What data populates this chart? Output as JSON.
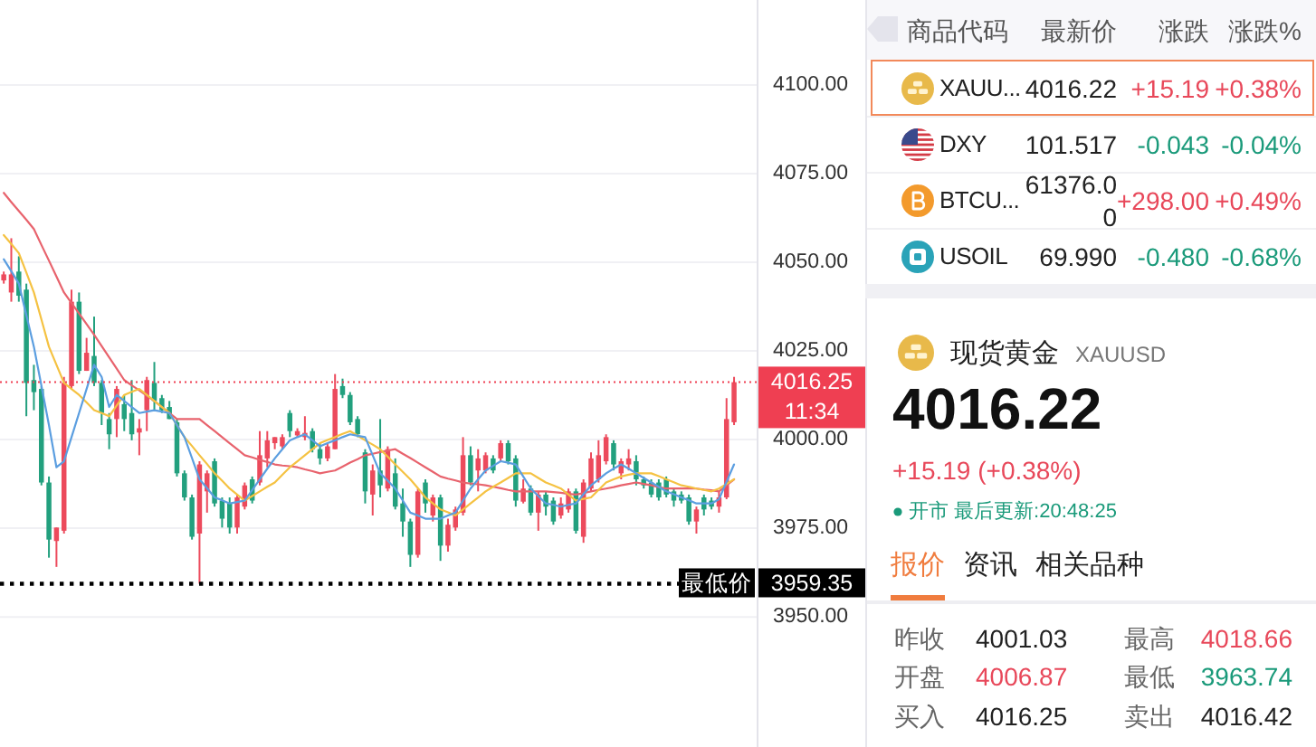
{
  "chart_data": [
    {
      "type": "candlestick",
      "categories": [
        null,
        null,
        null,
        null,
        null,
        null,
        null,
        null,
        null,
        null,
        null,
        null,
        null,
        null,
        null,
        null,
        null,
        null,
        null,
        null,
        null,
        null,
        null,
        null,
        null,
        null,
        null,
        null,
        null,
        null,
        null,
        null,
        null,
        null,
        null,
        null,
        null,
        null,
        null,
        null,
        null,
        null,
        null,
        null,
        null,
        null,
        null,
        null,
        null,
        null,
        null,
        null,
        null,
        null,
        null,
        null,
        null,
        null,
        null,
        null,
        null,
        null,
        null,
        null,
        null,
        null,
        null,
        null,
        null,
        null,
        null,
        null,
        null,
        null,
        null,
        null,
        null,
        null,
        null,
        null,
        null,
        null,
        null,
        null,
        null,
        null,
        null,
        null,
        null,
        null,
        null,
        null,
        null,
        null,
        null,
        null,
        null,
        null
      ],
      "ohlc": [
        [
          4044.9,
          4047.4,
          4044.0,
          4046.6
        ],
        [
          4041.5,
          4056.8,
          4038.9,
          4046.6
        ],
        [
          4047.4,
          4051.7,
          4038.9,
          4040.6
        ],
        [
          4042.3,
          4044.0,
          4006.6,
          4016.0
        ],
        [
          4016.8,
          4021.1,
          4008.3,
          4013.4
        ],
        [
          4014.3,
          4015.1,
          3987.1,
          3987.9
        ],
        [
          3987.9,
          3989.6,
          3966.7,
          3971.8
        ],
        [
          3971.4,
          3975.2,
          3964.1,
          3975.2
        ],
        [
          3974.3,
          4017.7,
          3973.5,
          4016.0
        ],
        [
          4015.1,
          4042.3,
          4014.3,
          4038.9
        ],
        [
          4038.9,
          4041.5,
          4018.5,
          4019.4
        ],
        [
          4019.4,
          4028.7,
          4019.4,
          4024.5
        ],
        [
          4023.6,
          4034.7,
          4015.1,
          4016.0
        ],
        [
          4016.0,
          4016.8,
          4004.1,
          4007.5
        ],
        [
          4005.8,
          4007.5,
          3997.3,
          4001.5
        ],
        [
          4005.8,
          4015.1,
          4000.7,
          4014.3
        ],
        [
          4010.0,
          4012.6,
          4002.4,
          4005.8
        ],
        [
          4007.5,
          4016.8,
          3999.8,
          4001.5
        ],
        [
          4002.0,
          4005.8,
          3995.6,
          4003.2
        ],
        [
          4008.3,
          4017.7,
          4002.4,
          4016.8
        ],
        [
          4016.0,
          4021.9,
          4008.3,
          4010.9
        ],
        [
          4011.7,
          4012.6,
          4007.5,
          4008.3
        ],
        [
          4009.2,
          4010.9,
          4005.8,
          4005.8
        ],
        [
          4004.9,
          4005.8,
          3989.6,
          3990.5
        ],
        [
          3990.5,
          3991.3,
          3982.8,
          3983.7
        ],
        [
          3983.7,
          3984.5,
          3971.8,
          3972.6
        ],
        [
          3973.5,
          3993.9,
          3959.35,
          3993.0
        ],
        [
          3985.4,
          3991.3,
          3979.4,
          3990.5
        ],
        [
          3993.9,
          3994.7,
          3981.1,
          3982.0
        ],
        [
          3982.8,
          3983.7,
          3975.2,
          3977.7
        ],
        [
          3982.0,
          3983.7,
          3973.5,
          3975.2
        ],
        [
          3975.2,
          3984.5,
          3973.5,
          3983.7
        ],
        [
          3981.1,
          3987.9,
          3980.3,
          3987.1
        ],
        [
          3988.8,
          3989.6,
          3982.0,
          3982.8
        ],
        [
          3987.9,
          4002.4,
          3987.1,
          3995.6
        ],
        [
          3994.7,
          4002.4,
          3992.2,
          3999.8
        ],
        [
          3999.0,
          4000.7,
          3997.3,
          4000.7
        ],
        [
          3998.1,
          4001.5,
          3997.3,
          4000.7
        ],
        [
          4007.5,
          4008.3,
          4000.7,
          4002.4
        ],
        [
          4001.2,
          4003.2,
          4000.7,
          4002.4
        ],
        [
          4000.7,
          4006.6,
          3999.8,
          4001.9
        ],
        [
          4002.4,
          4003.2,
          3996.4,
          3997.3
        ],
        [
          3997.3,
          3999.0,
          3993.0,
          3994.7
        ],
        [
          3994.7,
          3999.0,
          3993.9,
          3998.1
        ],
        [
          3997.3,
          4018.5,
          3997.3,
          4014.3
        ],
        [
          4015.1,
          4017.2,
          4011.7,
          4012.6
        ],
        [
          4012.6,
          4013.4,
          4004.1,
          4004.9
        ],
        [
          4005.8,
          4006.6,
          4000.7,
          4001.5
        ],
        [
          3996.4,
          3997.3,
          3982.0,
          3985.4
        ],
        [
          3984.5,
          3993.0,
          3978.6,
          3991.3
        ],
        [
          3991.3,
          4005.8,
          3983.7,
          3987.1
        ],
        [
          3986.2,
          3998.1,
          3985.4,
          3997.3
        ],
        [
          3990.5,
          3994.7,
          3980.3,
          3981.1
        ],
        [
          3982.0,
          3986.2,
          3972.6,
          3976.9
        ],
        [
          3976.9,
          3977.7,
          3964.1,
          3967.5
        ],
        [
          3967.5,
          3986.2,
          3966.7,
          3985.4
        ],
        [
          3987.9,
          3988.8,
          3979.4,
          3982.0
        ],
        [
          3978.6,
          3984.5,
          3976.9,
          3983.7
        ],
        [
          3983.7,
          3984.5,
          3965.8,
          3970.1
        ],
        [
          3970.1,
          3977.7,
          3968.4,
          3976.0
        ],
        [
          3975.2,
          3981.1,
          3974.3,
          3980.3
        ],
        [
          3979.4,
          4000.7,
          3978.6,
          3995.6
        ],
        [
          3995.6,
          3998.1,
          3987.1,
          3987.9
        ],
        [
          3991.3,
          3997.3,
          3985.4,
          3994.7
        ],
        [
          3991.3,
          3996.4,
          3990.5,
          3995.6
        ],
        [
          3994.7,
          3995.6,
          3990.5,
          3991.3
        ],
        [
          3994.7,
          3999.8,
          3993.9,
          3999.0
        ],
        [
          3999.0,
          3999.8,
          3993.0,
          3993.9
        ],
        [
          3994.7,
          3995.6,
          3981.1,
          3982.8
        ],
        [
          3982.5,
          3988.8,
          3982.0,
          3986.2
        ],
        [
          3986.2,
          3987.1,
          3978.6,
          3979.4
        ],
        [
          3979.4,
          3985.4,
          3974.3,
          3984.5
        ],
        [
          3984.5,
          3985.4,
          3978.6,
          3981.1
        ],
        [
          3982.8,
          3983.7,
          3976.0,
          3976.9
        ],
        [
          3978.6,
          3983.7,
          3977.7,
          3982.0
        ],
        [
          3980.3,
          3986.2,
          3979.4,
          3985.4
        ],
        [
          3985.4,
          3986.2,
          3973.5,
          3974.3
        ],
        [
          3972.6,
          3988.8,
          3970.9,
          3987.9
        ],
        [
          3986.2,
          3996.4,
          3985.4,
          3994.7
        ],
        [
          3988.8,
          3999.8,
          3987.9,
          3995.6
        ],
        [
          3993.9,
          4001.5,
          3993.0,
          4000.7
        ],
        [
          3999.0,
          3999.8,
          3991.3,
          3993.0
        ],
        [
          3990.5,
          3994.7,
          3988.8,
          3993.9
        ],
        [
          3993.0,
          3997.3,
          3991.3,
          3994.7
        ],
        [
          3993.9,
          3995.6,
          3987.1,
          3988.8
        ],
        [
          3988.8,
          3989.6,
          3986.2,
          3987.1
        ],
        [
          3987.9,
          3988.8,
          3983.7,
          3984.5
        ],
        [
          3987.9,
          3988.8,
          3982.8,
          3983.7
        ],
        [
          3988.8,
          3989.6,
          3983.7,
          3984.5
        ],
        [
          3985.4,
          3986.2,
          3981.1,
          3982.8
        ],
        [
          3984.5,
          3985.4,
          3982.0,
          3982.8
        ],
        [
          3983.7,
          3984.5,
          3976.0,
          3976.9
        ],
        [
          3976.9,
          3981.1,
          3973.5,
          3980.3
        ],
        [
          3983.7,
          3984.5,
          3978.6,
          3980.3
        ],
        [
          3982.8,
          3983.7,
          3980.3,
          3981.1
        ],
        [
          3981.1,
          3985.4,
          3979.4,
          3983.7
        ],
        [
          3983.7,
          4011.7,
          3983.2,
          4005.8
        ],
        [
          4004.9,
          4017.7,
          4004.1,
          4016.2
        ]
      ],
      "colors": [
        "#ec4a5c",
        "#ec4a5c",
        "#22a07e",
        "#22a07e",
        "#22a07e",
        "#22a07e",
        "#22a07e",
        "#ec4a5c",
        "#ec4a5c",
        "#ec4a5c",
        "#22a07e",
        "#ec4a5c",
        "#22a07e",
        "#22a07e",
        "#22a07e",
        "#ec4a5c",
        "#22a07e",
        "#22a07e",
        "#ec4a5c",
        "#ec4a5c",
        "#22a07e",
        "#22a07e",
        "#22a07e",
        "#22a07e",
        "#22a07e",
        "#22a07e",
        "#ec4a5c",
        "#ec4a5c",
        "#22a07e",
        "#22a07e",
        "#22a07e",
        "#ec4a5c",
        "#ec4a5c",
        "#22a07e",
        "#ec4a5c",
        "#ec4a5c",
        "#ec4a5c",
        "#ec4a5c",
        "#22a07e",
        "#ec4a5c",
        "#ec4a5c",
        "#22a07e",
        "#22a07e",
        "#ec4a5c",
        "#ec4a5c",
        "#22a07e",
        "#22a07e",
        "#22a07e",
        "#22a07e",
        "#ec4a5c",
        "#22a07e",
        "#ec4a5c",
        "#22a07e",
        "#22a07e",
        "#22a07e",
        "#ec4a5c",
        "#22a07e",
        "#ec4a5c",
        "#22a07e",
        "#ec4a5c",
        "#ec4a5c",
        "#ec4a5c",
        "#22a07e",
        "#ec4a5c",
        "#ec4a5c",
        "#22a07e",
        "#ec4a5c",
        "#22a07e",
        "#22a07e",
        "#ec4a5c",
        "#22a07e",
        "#ec4a5c",
        "#22a07e",
        "#22a07e",
        "#ec4a5c",
        "#ec4a5c",
        "#22a07e",
        "#ec4a5c",
        "#ec4a5c",
        "#ec4a5c",
        "#ec4a5c",
        "#22a07e",
        "#ec4a5c",
        "#ec4a5c",
        "#22a07e",
        "#22a07e",
        "#22a07e",
        "#22a07e",
        "#22a07e",
        "#22a07e",
        "#22a07e",
        "#22a07e",
        "#ec4a5c",
        "#22a07e",
        "#22a07e",
        "#ec4a5c",
        "#ec4a5c",
        "#ec4a5c"
      ],
      "series": [
        {
          "type": "line",
          "color": "#e8636d",
          "values": [
            4069.6,
            4067.0,
            4064.5,
            4062.0,
            4059.4,
            4054.9,
            4050.5,
            4046.0,
            4041.5,
            4038.5,
            4035.6,
            4032.6,
            4029.6,
            4026.4,
            4023.2,
            4020.0,
            4016.8,
            4015.3,
            4013.9,
            4012.4,
            4010.9,
            4009.2,
            4007.5,
            4005.8,
            4005.8,
            4005.8,
            4005.8,
            4004.1,
            4002.4,
            4000.7,
            3999.0,
            3997.3,
            3995.6,
            3995.0,
            3994.3,
            3993.7,
            3993.0,
            3992.7,
            3992.5,
            3992.2,
            3991.6,
            3991.1,
            3990.5,
            3990.9,
            3991.3,
            3992.4,
            3993.5,
            3994.5,
            3995.6,
            3996.0,
            3996.5,
            3996.9,
            3997.3,
            3996.0,
            3994.8,
            3993.5,
            3992.2,
            3990.9,
            3989.6,
            3989.0,
            3988.5,
            3987.9,
            3987.6,
            3987.4,
            3987.1,
            3986.7,
            3986.3,
            3985.8,
            3985.4,
            3985.4,
            3985.4,
            3985.4,
            3985.4,
            3985.2,
            3985.0,
            3984.7,
            3984.5,
            3984.9,
            3985.4,
            3985.8,
            3986.2,
            3986.6,
            3987.1,
            3987.5,
            3987.9,
            3987.5,
            3987.1,
            3986.6,
            3986.2,
            3986.2,
            3986.2,
            3986.2,
            3986.2,
            3985.9,
            3985.7,
            3985.4,
            3987.1,
            3988.8
          ]
        },
        {
          "type": "line",
          "color": "#f5c242",
          "values": [
            4057.7,
            4055.2,
            4052.6,
            4047.1,
            4041.5,
            4033.9,
            4026.2,
            4021.1,
            4016.0,
            4014.3,
            4012.6,
            4010.5,
            4008.3,
            4007.5,
            4006.6,
            4009.6,
            4012.6,
            4013.5,
            4014.3,
            4012.6,
            4010.9,
            4009.2,
            4007.5,
            4004.1,
            4000.7,
            3998.2,
            3995.6,
            3993.1,
            3990.5,
            3988.4,
            3986.2,
            3984.5,
            3982.8,
            3984.1,
            3985.4,
            3986.7,
            3987.9,
            3990.1,
            3992.2,
            3993.9,
            3995.6,
            3997.3,
            3999.0,
            3999.9,
            4000.7,
            4001.6,
            4002.4,
            4001.1,
            3999.8,
            3998.6,
            3997.3,
            3995.2,
            3993.0,
            3990.9,
            3988.8,
            3986.3,
            3983.7,
            3982.0,
            3980.3,
            3979.5,
            3978.6,
            3980.3,
            3982.0,
            3983.7,
            3985.4,
            3986.7,
            3987.9,
            3989.2,
            3990.5,
            3990.5,
            3990.5,
            3989.2,
            3987.9,
            3987.1,
            3986.2,
            3984.5,
            3982.8,
            3983.3,
            3983.7,
            3985.8,
            3987.9,
            3988.8,
            3989.6,
            3990.1,
            3990.5,
            3990.5,
            3990.5,
            3989.7,
            3988.8,
            3988.0,
            3987.1,
            3986.7,
            3986.2,
            3985.8,
            3985.4,
            3986.2,
            3987.5,
            3988.8
          ]
        },
        {
          "type": "line",
          "color": "#5b9ee0",
          "values": [
            4050.9,
            4047.5,
            4044.0,
            4035.1,
            4026.2,
            4015.2,
            4004.1,
            3992.2,
            3993.9,
            4000.7,
            4007.5,
            4014.3,
            4021.1,
            4017.7,
            4009.2,
            4012.6,
            4010.9,
            4009.2,
            4007.5,
            4007.9,
            4008.3,
            4007.9,
            4007.5,
            4004.1,
            4000.7,
            3994.8,
            3988.8,
            3986.3,
            3983.7,
            3982.9,
            3982.0,
            3982.4,
            3982.8,
            3985.8,
            3988.8,
            3991.8,
            3994.7,
            3997.3,
            3999.8,
            4000.7,
            4001.5,
            3999.8,
            3998.1,
            3999.0,
            3999.8,
            4000.7,
            4001.5,
            4001.1,
            4000.7,
            3995.6,
            3990.5,
            3988.4,
            3986.2,
            3982.8,
            3979.4,
            3978.6,
            3977.7,
            3977.7,
            3977.7,
            3978.6,
            3979.4,
            3982.8,
            3986.2,
            3988.8,
            3991.3,
            3992.6,
            3993.9,
            3993.5,
            3993.0,
            3989.6,
            3986.2,
            3984.1,
            3982.0,
            3981.6,
            3981.1,
            3981.6,
            3982.0,
            3984.6,
            3987.1,
            3988.8,
            3990.5,
            3991.8,
            3993.0,
            3991.8,
            3990.5,
            3989.2,
            3987.9,
            3986.7,
            3985.4,
            3984.6,
            3983.7,
            3982.9,
            3982.0,
            3982.0,
            3982.0,
            3983.2,
            3988.1,
            3993.0
          ]
        }
      ],
      "ylim": [
        3913.3,
        4124.0
      ],
      "yticks": [
        {
          "value": 3950,
          "label": "3950.00"
        },
        {
          "value": 3975,
          "label": "3975.00"
        },
        {
          "value": 4000,
          "label": "4000.00"
        },
        {
          "value": 4025,
          "label": "4025.00"
        },
        {
          "value": 4050,
          "label": "4050.00"
        },
        {
          "value": 4075,
          "label": "4075.00"
        },
        {
          "value": 4100,
          "label": "4100.00"
        }
      ],
      "grid": "y",
      "tick_labels": "y",
      "ref_lines": [
        {
          "axis": "y",
          "value": 4016.25,
          "label": "4016.25",
          "color": "#ef3f52",
          "line_style": "dotted"
        },
        {
          "axis": "y",
          "value": 3959.35,
          "label": "3959.35",
          "color": "#000000",
          "line_style": "dotted"
        }
      ],
      "annotations": [
        "11:34",
        {
          "text": "最低价",
          "y": 3959.35
        }
      ]
    },
    {
      "type": "other",
      "annotations": [
        "商品代码",
        "最新价",
        "涨跌",
        "涨跌%",
        "XAUU...",
        "4016.22",
        "+15.19",
        "+0.38%",
        "DXY",
        "101.517",
        "-0.043",
        "-0.04%",
        "BTCU...",
        "61376.00",
        "+298.00",
        "+0.49%",
        "USOIL",
        "69.990",
        "-0.480",
        "-0.68%"
      ],
      "colors": [
        "#555555",
        "#555555",
        "#555555",
        "#555555",
        "#222222",
        "#222222",
        "#e8485a",
        "#e8485a",
        "#222222",
        "#222222",
        "#1a9a7a",
        "#1a9a7a",
        "#222222",
        "#222222",
        "#e8485a",
        "#e8485a",
        "#222222",
        "#222222",
        "#1a9a7a",
        "#1a9a7a"
      ]
    },
    {
      "type": "other",
      "title": "现货黄金",
      "subtitle": "XAUUSD",
      "annotations": [
        "4016.22",
        "+15.19 (+0.38%)",
        "开市 最后更新:20:48:25",
        "报价",
        "资讯",
        "相关品种",
        "昨收",
        "4001.03",
        "最高",
        "4018.66",
        "开盘",
        "4006.87",
        "最低",
        "3963.74",
        "买入",
        "4016.25",
        "卖出",
        "4016.42"
      ],
      "colors": [
        "#111111",
        "#e8485a",
        "#1a9a7a",
        "#f07c3e",
        "#222222",
        "#222222",
        "#666666",
        "#222222",
        "#666666",
        "#e8485a",
        "#666666",
        "#e8485a",
        "#666666",
        "#1a9a7a",
        "#666666",
        "#222222",
        "#666666",
        "#222222"
      ]
    }
  ]
}
